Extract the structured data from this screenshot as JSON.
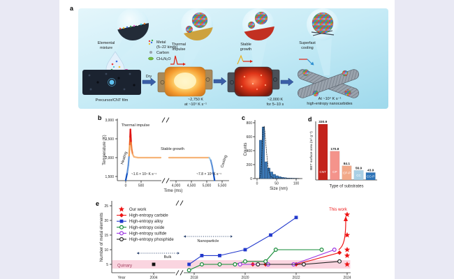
{
  "figure": {
    "background_color": "#e9e9f4",
    "card_color": "#ffffff",
    "panels": {
      "a": {
        "label": "a",
        "labels": {
          "elemental_l1": "Elemental",
          "elemental_l2": "mixture",
          "metal_l1": "Metal",
          "metal_l2": "(5–22 kinds)",
          "carbon": "Carbon",
          "urea": "CH₄N₂O",
          "thermal_l1": "Thermal",
          "thermal_l2": "impulse",
          "stable_l1": "Stable",
          "stable_l2": "growth",
          "cool_l1": "Superfast",
          "cool_l2": "cooling",
          "dry": "Dry",
          "film": "Precursor/CNT film",
          "stage1_l1": "~2,750 K",
          "stage1_l2": "at ~10⁵ K s⁻¹",
          "stage2_l1": "~2,000 K",
          "stage2_l2": "for 5–10 s",
          "stage3_l1": "At ~10⁴ K s⁻¹",
          "stage3_l2": "high-entropy nanocarbides"
        }
      },
      "b": {
        "label": "b"
      },
      "c": {
        "label": "c"
      },
      "d": {
        "label": "d"
      },
      "e": {
        "label": "e"
      }
    }
  },
  "chart_data": [
    {
      "id": "b",
      "type": "line",
      "ylabel": "Temperature (K)",
      "xlabel": "Time (ms)",
      "y_tick_labels": [
        "1,500",
        "2,000",
        "2,500",
        "3,000"
      ],
      "y_tick_values": [
        1500,
        2000,
        2500,
        3000
      ],
      "x_tick_labels": [
        "0",
        "500",
        "4,000",
        "4,500",
        "5,000",
        "5,500"
      ],
      "x_tick_values": [
        0,
        500,
        4000,
        4500,
        5000,
        5500
      ],
      "axis_break_ms": [
        700,
        3900
      ],
      "start_temperature_K": 1400,
      "peak_temperature_K": 2750,
      "plateau_temperature_K": 2000,
      "annotations": {
        "peak": "Thermal impulse",
        "heating": "Heating",
        "plateau": "Stable growth",
        "cooling": "Cooling",
        "heating_rate": "~1.6 × 10⁴ K s⁻¹",
        "cooling_rate": "~7.8 × 10³ K s⁻¹"
      },
      "profile_ms_K": [
        [
          0,
          1400
        ],
        [
          50,
          1600
        ],
        [
          85,
          1800
        ],
        [
          110,
          2050
        ],
        [
          130,
          2350
        ],
        [
          142,
          2550
        ],
        [
          152,
          2750
        ],
        [
          163,
          2600
        ],
        [
          176,
          2400
        ],
        [
          196,
          2220
        ],
        [
          226,
          2090
        ],
        [
          270,
          2020
        ],
        [
          400,
          2000
        ],
        [
          700,
          2000
        ],
        [
          3900,
          2000
        ],
        [
          5080,
          2000
        ],
        [
          5130,
          1930
        ],
        [
          5175,
          1780
        ],
        [
          5215,
          1600
        ],
        [
          5255,
          1400
        ]
      ],
      "colors": {
        "cold": "#1050c0",
        "cool_mid": "#5f93d8",
        "warm": "#f0a050",
        "hot": "#ee5a20",
        "peak": "#e01515",
        "decay_mid": "#f07f3c",
        "plateau": "#f6b478",
        "cool_light": "#9fcbe9"
      }
    },
    {
      "id": "c",
      "type": "histogram",
      "ylabel": "Counts",
      "xlabel": "Size (nm)",
      "y_ticks": [
        0,
        200,
        400,
        600,
        800
      ],
      "x_ticks": [
        0,
        50,
        100
      ],
      "bin_start_nm": 6,
      "bin_width_nm": 7,
      "counts": [
        550,
        740,
        240,
        150,
        95,
        60,
        40,
        28,
        18,
        12,
        8,
        6,
        5,
        4
      ],
      "bar_color": "#3c7ab8",
      "fit_curve": {
        "style": "dashed",
        "peak_nm": 17.5,
        "peak_count": 755
      }
    },
    {
      "id": "d",
      "type": "bar",
      "ylabel": "BET surface area (m² g⁻¹)",
      "xlabel": "Type of substrates",
      "categories": [
        "CNT",
        "CP",
        "CP-P",
        "CC",
        "CC-P"
      ],
      "values": [
        330.9,
        170.8,
        84.1,
        56.9,
        43.9
      ],
      "value_labels": [
        "330.9",
        "170.8",
        "84.1",
        "56.9",
        "43.9"
      ],
      "colors": [
        "#c3231c",
        "#f4938b",
        "#f2a988",
        "#a9cfe5",
        "#2e74b8"
      ],
      "ylim": [
        0,
        340
      ]
    },
    {
      "id": "e",
      "type": "scatter-line",
      "ylabel": "Number of metal elements",
      "xlabel": "Year",
      "y_ticks": [
        5,
        10,
        15,
        20,
        25
      ],
      "x_ticks_left": [
        2004
      ],
      "x_ticks_right": [
        2018,
        2020,
        2022,
        2024
      ],
      "axis_break_years": [
        2006,
        2017
      ],
      "band": {
        "label": "Quinary",
        "value": 5,
        "color": "#fad5e0",
        "label_color": "#a23c5c"
      },
      "annotations": {
        "bulk": "Bulk",
        "nanoparticle": "Nanoparticle",
        "this_work": "This work"
      },
      "bulk_point": {
        "year": 2004,
        "elements": 5,
        "marker": "square",
        "color": "#111111"
      },
      "series": [
        {
          "name": "Our work",
          "marker": "star",
          "color": "#ee1515",
          "points": [
            [
              2024.2,
              22
            ],
            [
              2024.2,
              15
            ],
            [
              2024.2,
              10
            ],
            [
              2024.2,
              8
            ],
            [
              2024.2,
              5
            ]
          ]
        },
        {
          "name": "High-entropy carbide",
          "marker": "diamond",
          "color": "#ee1515",
          "points": [
            [
              2020.3,
              5
            ],
            [
              2020.8,
              5
            ],
            [
              2022,
              5
            ],
            [
              2023.7,
              9
            ]
          ]
        },
        {
          "name": "High-entropy alloy",
          "marker": "square",
          "color": "#2239cc",
          "points": [
            [
              2017.8,
              5
            ],
            [
              2018.3,
              8
            ],
            [
              2019,
              8
            ],
            [
              2020,
              10
            ],
            [
              2021,
              15
            ],
            [
              2022,
              21
            ]
          ]
        },
        {
          "name": "High-entropy oxide",
          "marker": "circle",
          "color": "#128a35",
          "points": [
            [
              2017.8,
              3
            ],
            [
              2018.3,
              5
            ],
            [
              2019,
              5
            ],
            [
              2019.6,
              5
            ],
            [
              2020,
              6
            ],
            [
              2020.8,
              6
            ],
            [
              2021.2,
              10
            ],
            [
              2023,
              10
            ]
          ]
        },
        {
          "name": "High-entropy sulfide",
          "marker": "circle",
          "color": "#9a2fe0",
          "points": [
            [
              2019.8,
              5
            ],
            [
              2020.9,
              5
            ],
            [
              2021.9,
              5
            ],
            [
              2023.5,
              10
            ]
          ]
        },
        {
          "name": "High-entropy phosphide",
          "marker": "circle",
          "color": "#222222",
          "points": [
            [
              2020.5,
              5
            ],
            [
              2022.3,
              5
            ],
            [
              2023.7,
              6
            ]
          ]
        }
      ]
    }
  ]
}
